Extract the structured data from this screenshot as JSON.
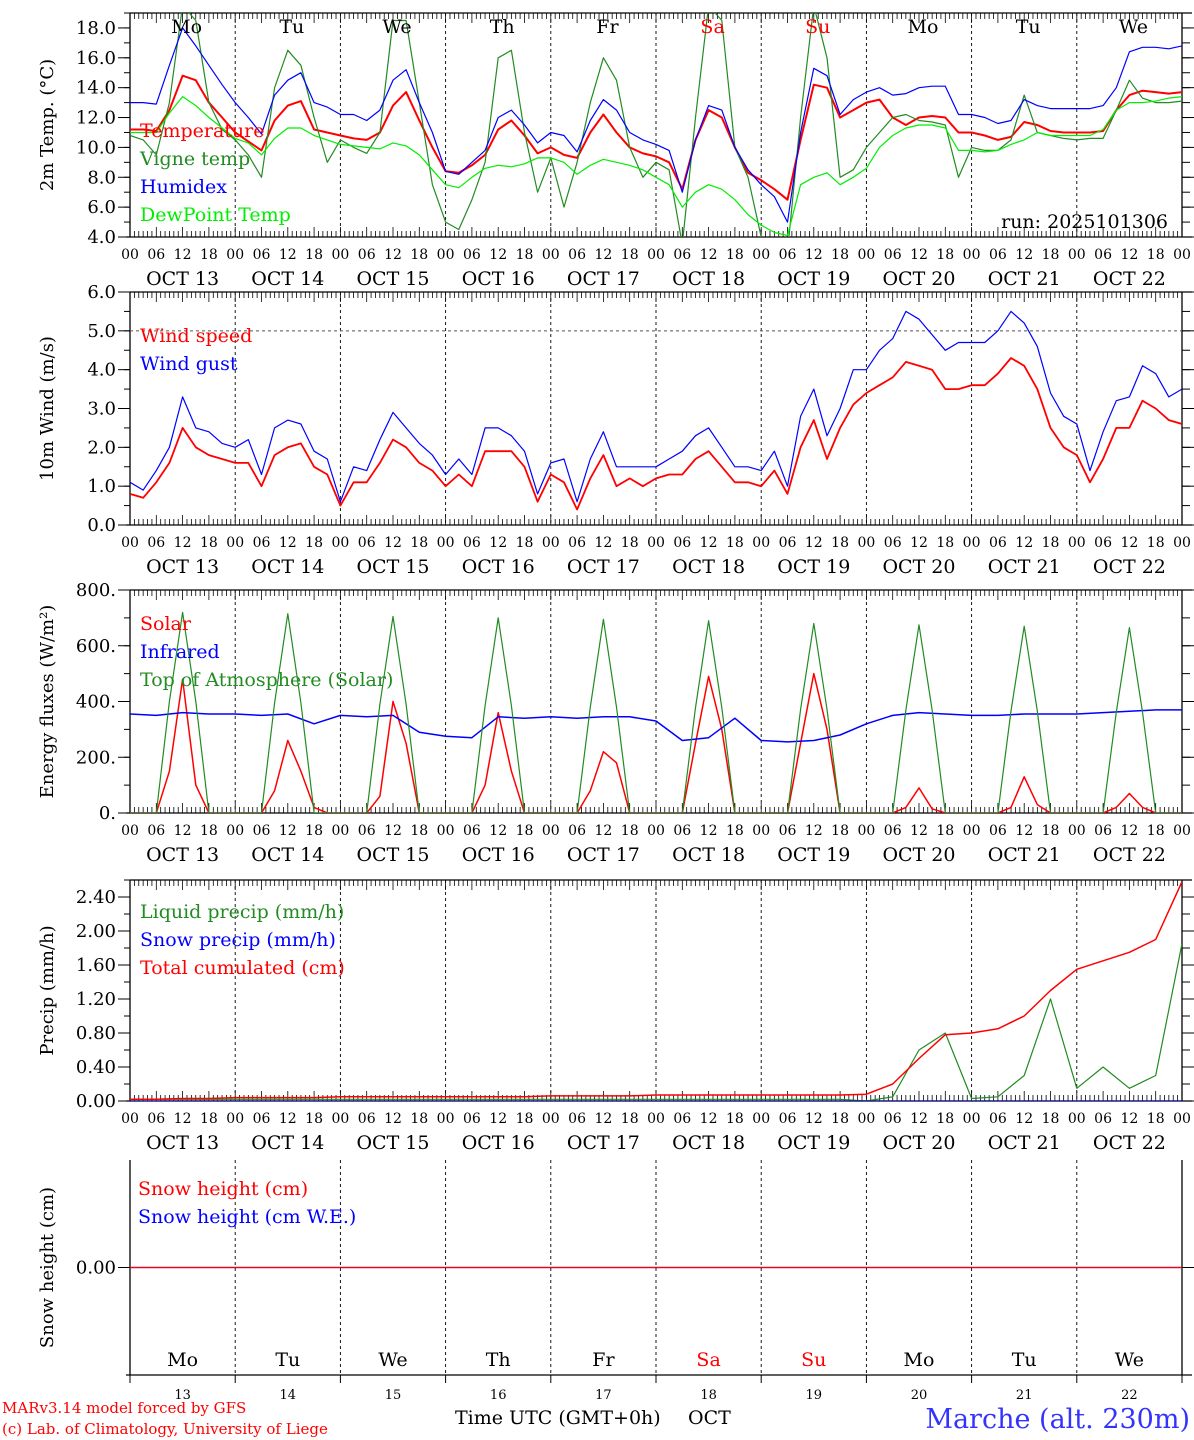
{
  "time_axis": {
    "hours_total": 240,
    "dates": [
      "OCT 13",
      "OCT 14",
      "OCT 15",
      "OCT 16",
      "OCT 17",
      "OCT 18",
      "OCT 19",
      "OCT 20",
      "OCT 21",
      "OCT 22"
    ],
    "hour_labels": [
      "00",
      "06",
      "12",
      "18"
    ],
    "weekdays": [
      "Mo",
      "Tu",
      "We",
      "Th",
      "Fr",
      "Sa",
      "Su",
      "Mo",
      "Tu",
      "We"
    ],
    "weekday_colors": [
      "#000000",
      "#000000",
      "#000000",
      "#000000",
      "#000000",
      "#ff0000",
      "#ff0000",
      "#000000",
      "#000000",
      "#000000"
    ],
    "day_numbers": [
      "13",
      "14",
      "15",
      "16",
      "17",
      "18",
      "19",
      "20",
      "21",
      "22"
    ],
    "xlabel": "Time UTC (GMT+0h)",
    "month": "OCT"
  },
  "run_label": "run: 2025101306",
  "footer": {
    "model": "MARv3.14 model forced by GFS",
    "credit": "(c) Lab. of Climatology, University of Liege",
    "station": "Marche (alt. 230m)"
  },
  "chart_data": [
    {
      "type": "line",
      "ylabel": "2m Temp. (°C)",
      "ylim": [
        4,
        19
      ],
      "yticks": [
        4,
        6,
        8,
        10,
        12,
        14,
        16,
        18
      ],
      "ytick_labels": [
        "4.0",
        "6.0",
        "8.0",
        "10.0",
        "12.0",
        "14.0",
        "16.0",
        "18.0"
      ],
      "yminor": 1,
      "series": [
        {
          "name": "Temperature",
          "color": "#ff0000",
          "width": 2,
          "step_hours": 3,
          "values": [
            11.2,
            11.2,
            11.1,
            12.5,
            14.8,
            14.5,
            13.0,
            12.0,
            11.0,
            10.4,
            9.8,
            11.8,
            12.8,
            13.1,
            11.2,
            11.0,
            10.8,
            10.6,
            10.5,
            11.0,
            12.8,
            13.7,
            11.8,
            10.0,
            8.4,
            8.3,
            8.8,
            9.5,
            11.2,
            11.8,
            10.8,
            9.6,
            10.0,
            9.5,
            9.3,
            11.0,
            12.2,
            11.0,
            10.0,
            9.6,
            9.4,
            9.0,
            7.2,
            10.5,
            12.5,
            12.0,
            10.0,
            8.3,
            7.8,
            7.2,
            6.5,
            10.5,
            14.2,
            14.0,
            12.0,
            12.5,
            13.0,
            13.2,
            12.0,
            11.5,
            12.0,
            12.1,
            12.0,
            11.0,
            11.0,
            10.8,
            10.5,
            10.7,
            11.7,
            11.5,
            11.1,
            11.0,
            11.0,
            11.0,
            11.1,
            12.5,
            13.5,
            13.8,
            13.7,
            13.6,
            13.7
          ]
        },
        {
          "name": "Vigne temp",
          "color": "#228b22",
          "width": 1.2,
          "step_hours": 3,
          "values": [
            10.8,
            10.5,
            9.5,
            13.0,
            19.5,
            18.5,
            13.0,
            11.2,
            10.5,
            9.5,
            8.0,
            14.0,
            16.5,
            15.5,
            12.0,
            9.0,
            10.5,
            10.0,
            9.6,
            11.0,
            18.5,
            18.5,
            13.0,
            7.5,
            5.0,
            4.5,
            6.5,
            9.0,
            16.0,
            16.5,
            11.0,
            7.0,
            9.3,
            6.0,
            9.0,
            13.0,
            16.0,
            14.5,
            10.0,
            8.0,
            9.0,
            8.5,
            3.5,
            12.0,
            19.5,
            18.5,
            10.0,
            8.0,
            4.0,
            3.5,
            3.0,
            12.0,
            19.5,
            16.0,
            8.0,
            8.5,
            10.0,
            11.0,
            12.0,
            12.2,
            11.8,
            11.7,
            11.5,
            8.0,
            10.0,
            9.8,
            9.8,
            10.5,
            13.5,
            11.0,
            10.8,
            10.6,
            10.5,
            10.6,
            10.6,
            12.5,
            14.5,
            13.3,
            13.0,
            13.0,
            13.1
          ]
        },
        {
          "name": "Humidex",
          "color": "#0000ff",
          "width": 1.2,
          "step_hours": 3,
          "values": [
            13.0,
            13.0,
            12.9,
            15.5,
            18.0,
            16.8,
            15.5,
            14.2,
            13.0,
            12.0,
            10.9,
            13.5,
            14.5,
            15.0,
            13.0,
            12.7,
            12.2,
            12.2,
            11.8,
            12.5,
            14.5,
            15.2,
            13.0,
            11.0,
            8.4,
            8.2,
            9.0,
            9.8,
            12.0,
            12.5,
            11.5,
            10.3,
            11.0,
            10.8,
            9.7,
            11.8,
            13.2,
            12.5,
            11.0,
            10.5,
            10.2,
            9.8,
            7.0,
            10.5,
            12.8,
            12.5,
            10.0,
            8.5,
            7.5,
            6.7,
            5.0,
            11.0,
            15.3,
            14.8,
            12.2,
            13.2,
            13.7,
            14.0,
            13.5,
            13.6,
            14.0,
            14.1,
            14.1,
            12.2,
            12.2,
            12.0,
            11.6,
            11.8,
            13.2,
            12.8,
            12.6,
            12.6,
            12.6,
            12.6,
            12.8,
            14.0,
            16.4,
            16.7,
            16.7,
            16.6,
            16.8
          ]
        },
        {
          "name": "DewPoint Temp",
          "color": "#00ee00",
          "width": 1.2,
          "step_hours": 3,
          "values": [
            11.0,
            11.0,
            11.0,
            12.3,
            13.4,
            12.8,
            12.0,
            11.3,
            10.6,
            10.3,
            9.5,
            10.6,
            11.3,
            11.3,
            10.8,
            10.5,
            10.2,
            10.1,
            10.0,
            9.9,
            10.3,
            10.1,
            9.5,
            8.5,
            7.5,
            7.3,
            8.0,
            8.6,
            8.8,
            8.7,
            8.9,
            9.3,
            9.3,
            9.0,
            8.2,
            8.8,
            9.2,
            9.0,
            8.8,
            8.5,
            8.0,
            7.5,
            6.0,
            7.0,
            7.5,
            7.2,
            6.5,
            5.5,
            4.8,
            4.3,
            4.1,
            7.5,
            8.0,
            8.3,
            7.5,
            8.0,
            8.6,
            10.0,
            10.8,
            11.3,
            11.5,
            11.5,
            11.3,
            9.8,
            9.8,
            9.7,
            9.8,
            10.2,
            10.5,
            11.0,
            10.8,
            10.8,
            10.8,
            10.8,
            11.2,
            12.5,
            13.0,
            13.0,
            13.1,
            13.3,
            13.4
          ]
        }
      ]
    },
    {
      "type": "line",
      "ylabel": "10m Wind (m/s)",
      "ylim": [
        0,
        6
      ],
      "yticks": [
        0,
        1,
        2,
        3,
        4,
        5,
        6
      ],
      "ytick_labels": [
        "0.0",
        "1.0",
        "2.0",
        "3.0",
        "4.0",
        "5.0",
        "6.0"
      ],
      "yminor": 0.5,
      "reference_line": 5,
      "series": [
        {
          "name": "Wind speed",
          "color": "#ff0000",
          "width": 1.8,
          "step_hours": 3,
          "values": [
            0.8,
            0.7,
            1.1,
            1.6,
            2.5,
            2.0,
            1.8,
            1.7,
            1.6,
            1.6,
            1.0,
            1.8,
            2.0,
            2.1,
            1.5,
            1.3,
            0.5,
            1.1,
            1.1,
            1.6,
            2.2,
            2.0,
            1.6,
            1.4,
            1.0,
            1.3,
            1.0,
            1.9,
            1.9,
            1.9,
            1.5,
            0.6,
            1.3,
            1.1,
            0.4,
            1.2,
            1.8,
            1.0,
            1.2,
            1.0,
            1.2,
            1.3,
            1.3,
            1.7,
            1.9,
            1.5,
            1.1,
            1.1,
            1.0,
            1.4,
            0.8,
            2.0,
            2.7,
            1.7,
            2.5,
            3.1,
            3.4,
            3.6,
            3.8,
            4.2,
            4.1,
            4.0,
            3.5,
            3.5,
            3.6,
            3.6,
            3.9,
            4.3,
            4.1,
            3.5,
            2.5,
            2.0,
            1.8,
            1.1,
            1.7,
            2.5,
            2.5,
            3.2,
            3.0,
            2.7,
            2.6
          ]
        },
        {
          "name": "Wind gust",
          "color": "#0000ff",
          "width": 1.2,
          "step_hours": 3,
          "values": [
            1.1,
            0.9,
            1.4,
            2.0,
            3.3,
            2.5,
            2.4,
            2.1,
            2.0,
            2.2,
            1.3,
            2.5,
            2.7,
            2.6,
            1.9,
            1.7,
            0.6,
            1.5,
            1.4,
            2.2,
            2.9,
            2.5,
            2.1,
            1.8,
            1.3,
            1.7,
            1.3,
            2.5,
            2.5,
            2.3,
            1.9,
            0.8,
            1.6,
            1.7,
            0.6,
            1.7,
            2.4,
            1.5,
            1.5,
            1.5,
            1.5,
            1.7,
            1.9,
            2.3,
            2.5,
            2.0,
            1.5,
            1.5,
            1.4,
            1.9,
            1.0,
            2.8,
            3.5,
            2.3,
            3.0,
            4.0,
            4.0,
            4.5,
            4.8,
            5.5,
            5.3,
            4.9,
            4.5,
            4.7,
            4.7,
            4.7,
            5.0,
            5.5,
            5.2,
            4.6,
            3.4,
            2.8,
            2.6,
            1.4,
            2.4,
            3.2,
            3.3,
            4.1,
            3.9,
            3.3,
            3.5
          ]
        }
      ]
    },
    {
      "type": "line",
      "ylabel": "Energy fluxes (W/m²)",
      "ylim": [
        0,
        800
      ],
      "yticks": [
        0,
        200,
        400,
        600,
        800
      ],
      "ytick_labels": [
        "0.",
        "200.",
        "400.",
        "600.",
        "800."
      ],
      "yminor": 100,
      "series": [
        {
          "name": "Solar",
          "color": "#ff0000",
          "width": 1.5,
          "step_hours": 3,
          "values": [
            0,
            0,
            0,
            150,
            480,
            100,
            0,
            0,
            0,
            0,
            0,
            80,
            260,
            150,
            20,
            0,
            0,
            0,
            0,
            60,
            400,
            250,
            0,
            0,
            0,
            0,
            0,
            100,
            360,
            150,
            0,
            0,
            0,
            0,
            0,
            80,
            220,
            180,
            0,
            0,
            0,
            0,
            0,
            250,
            490,
            300,
            0,
            0,
            0,
            0,
            0,
            250,
            500,
            300,
            0,
            0,
            0,
            0,
            0,
            20,
            90,
            15,
            0,
            0,
            0,
            0,
            0,
            20,
            130,
            30,
            0,
            0,
            0,
            0,
            0,
            20,
            70,
            20,
            0,
            0,
            0
          ]
        },
        {
          "name": "Infrared",
          "color": "#0000ff",
          "width": 1.5,
          "step_hours": 6,
          "values": [
            355,
            350,
            360,
            355,
            355,
            350,
            355,
            320,
            350,
            345,
            350,
            290,
            275,
            270,
            345,
            340,
            345,
            340,
            345,
            345,
            330,
            260,
            270,
            340,
            260,
            255,
            260,
            280,
            320,
            350,
            360,
            355,
            350,
            350,
            355,
            355,
            355,
            360,
            365,
            370,
            370
          ]
        },
        {
          "name": "Top of Atmosphere (Solar)",
          "color": "#228b22",
          "width": 1.2,
          "step_hours": 3,
          "values": [
            0,
            0,
            0,
            400,
            720,
            400,
            0,
            0,
            0,
            0,
            0,
            395,
            715,
            395,
            0,
            0,
            0,
            0,
            0,
            390,
            705,
            390,
            0,
            0,
            0,
            0,
            0,
            385,
            700,
            385,
            0,
            0,
            0,
            0,
            0,
            380,
            695,
            380,
            0,
            0,
            0,
            0,
            0,
            378,
            690,
            378,
            0,
            0,
            0,
            0,
            0,
            372,
            680,
            372,
            0,
            0,
            0,
            0,
            0,
            370,
            675,
            370,
            0,
            0,
            0,
            0,
            0,
            366,
            670,
            366,
            0,
            0,
            0,
            0,
            0,
            362,
            665,
            362,
            0,
            0,
            0
          ]
        }
      ]
    },
    {
      "type": "line",
      "ylabel": "Precip (mm/h)",
      "ylim": [
        0,
        2.6
      ],
      "yticks": [
        0,
        0.4,
        0.8,
        1.2,
        1.6,
        2.0,
        2.4
      ],
      "ytick_labels": [
        "0.00",
        "0.40",
        "0.80",
        "1.20",
        "1.60",
        "2.00",
        "2.40"
      ],
      "yminor": 0.2,
      "series": [
        {
          "name": "Liquid precip (mm/h)",
          "color": "#228b22",
          "width": 1.2,
          "step_hours": 6,
          "values": [
            0.02,
            0.02,
            0.02,
            0.02,
            0.02,
            0.02,
            0.02,
            0.02,
            0.02,
            0.02,
            0.02,
            0.02,
            0.02,
            0.02,
            0.02,
            0.02,
            0.02,
            0.02,
            0.02,
            0.02,
            0.02,
            0.02,
            0.02,
            0.02,
            0.02,
            0.02,
            0.02,
            0.02,
            0.0,
            0.05,
            0.6,
            0.8,
            0.03,
            0.05,
            0.3,
            1.2,
            0.15,
            0.4,
            0.15,
            0.3,
            1.85
          ]
        },
        {
          "name": "Snow precip (mm/h)",
          "color": "#0000ff",
          "width": 1.2,
          "step_hours": 24,
          "values": [
            0,
            0,
            0,
            0,
            0,
            0,
            0,
            0,
            0,
            0,
            0
          ]
        },
        {
          "name": "Total cumulated (cm)",
          "color": "#ff0000",
          "width": 1.5,
          "step_hours": 6,
          "values": [
            0.02,
            0.02,
            0.03,
            0.03,
            0.04,
            0.04,
            0.04,
            0.04,
            0.05,
            0.05,
            0.05,
            0.05,
            0.05,
            0.05,
            0.05,
            0.05,
            0.06,
            0.06,
            0.06,
            0.06,
            0.07,
            0.07,
            0.07,
            0.07,
            0.07,
            0.07,
            0.07,
            0.07,
            0.08,
            0.2,
            0.5,
            0.78,
            0.8,
            0.85,
            1.0,
            1.3,
            1.55,
            1.65,
            1.75,
            1.9,
            2.58
          ]
        }
      ]
    },
    {
      "type": "line",
      "ylabel": "Snow height (cm)",
      "ylim": [
        -1,
        1
      ],
      "yticks": [
        0
      ],
      "ytick_labels": [
        "0.00"
      ],
      "series": [
        {
          "name": "Snow height (cm W.E.)",
          "color": "#0000ff",
          "width": 1.2,
          "step_hours": 24,
          "values": [
            0,
            0,
            0,
            0,
            0,
            0,
            0,
            0,
            0,
            0,
            0
          ]
        },
        {
          "name": "Snow height (cm)",
          "color": "#ff0000",
          "width": 1.2,
          "step_hours": 24,
          "values": [
            0,
            0,
            0,
            0,
            0,
            0,
            0,
            0,
            0,
            0,
            0
          ]
        }
      ]
    }
  ]
}
